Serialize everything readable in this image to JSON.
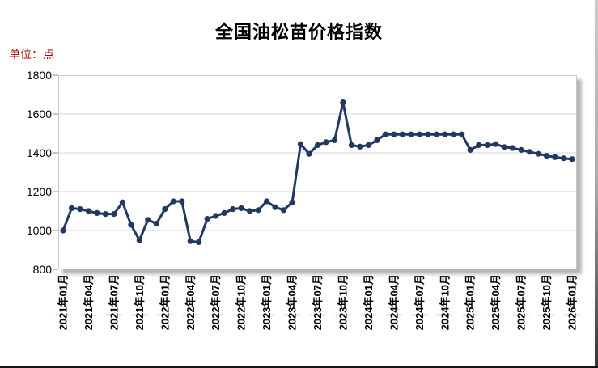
{
  "chart": {
    "title": "全国油松苗价格指数",
    "unit_label": "单位：点",
    "line_color": "#1f3864",
    "unit_label_color": "#b00000",
    "gridline_color": "#d6d6d6",
    "frame_color": "#c8c8c8"
  },
  "chart_data": {
    "type": "line",
    "title": "全国油松苗价格指数",
    "xlabel": "",
    "ylabel": "点",
    "ylim": [
      800,
      1800
    ],
    "yticks": [
      1800,
      1600,
      1400,
      1200,
      1000,
      800
    ],
    "xtick_every": 3,
    "grid": "horizontal",
    "legend": "none",
    "marker": "circle",
    "categories": [
      "2021年01月",
      "2021年02月",
      "2021年03月",
      "2021年04月",
      "2021年05月",
      "2021年06月",
      "2021年07月",
      "2021年08月",
      "2021年09月",
      "2021年10月",
      "2021年11月",
      "2021年12月",
      "2022年01月",
      "2022年02月",
      "2022年03月",
      "2022年04月",
      "2022年05月",
      "2022年06月",
      "2022年07月",
      "2022年08月",
      "2022年09月",
      "2022年10月",
      "2022年11月",
      "2022年12月",
      "2023年01月",
      "2023年02月",
      "2023年03月",
      "2023年04月",
      "2023年05月",
      "2023年06月",
      "2023年07月",
      "2023年08月",
      "2023年09月",
      "2023年10月",
      "2023年11月",
      "2023年12月",
      "2024年01月",
      "2024年02月",
      "2024年03月",
      "2024年04月",
      "2024年05月",
      "2024年06月",
      "2024年07月",
      "2024年08月",
      "2024年09月",
      "2024年10月",
      "2024年11月",
      "2024年12月",
      "2025年01月",
      "2025年02月",
      "2025年03月",
      "2025年04月",
      "2025年05月",
      "2025年06月",
      "2025年07月",
      "2025年08月",
      "2025年09月",
      "2025年10月",
      "2025年11月",
      "2025年12月",
      "2026年01月"
    ],
    "values": [
      1000,
      1115,
      1110,
      1100,
      1090,
      1085,
      1085,
      1145,
      1030,
      950,
      1055,
      1035,
      1110,
      1150,
      1150,
      945,
      940,
      1060,
      1075,
      1090,
      1110,
      1115,
      1100,
      1105,
      1150,
      1120,
      1105,
      1145,
      1445,
      1395,
      1440,
      1455,
      1465,
      1660,
      1440,
      1432,
      1440,
      1465,
      1495,
      1495,
      1495,
      1495,
      1495,
      1495,
      1495,
      1495,
      1495,
      1495,
      1415,
      1440,
      1440,
      1445,
      1430,
      1425,
      1415,
      1405,
      1395,
      1385,
      1378,
      1372,
      1368
    ]
  }
}
